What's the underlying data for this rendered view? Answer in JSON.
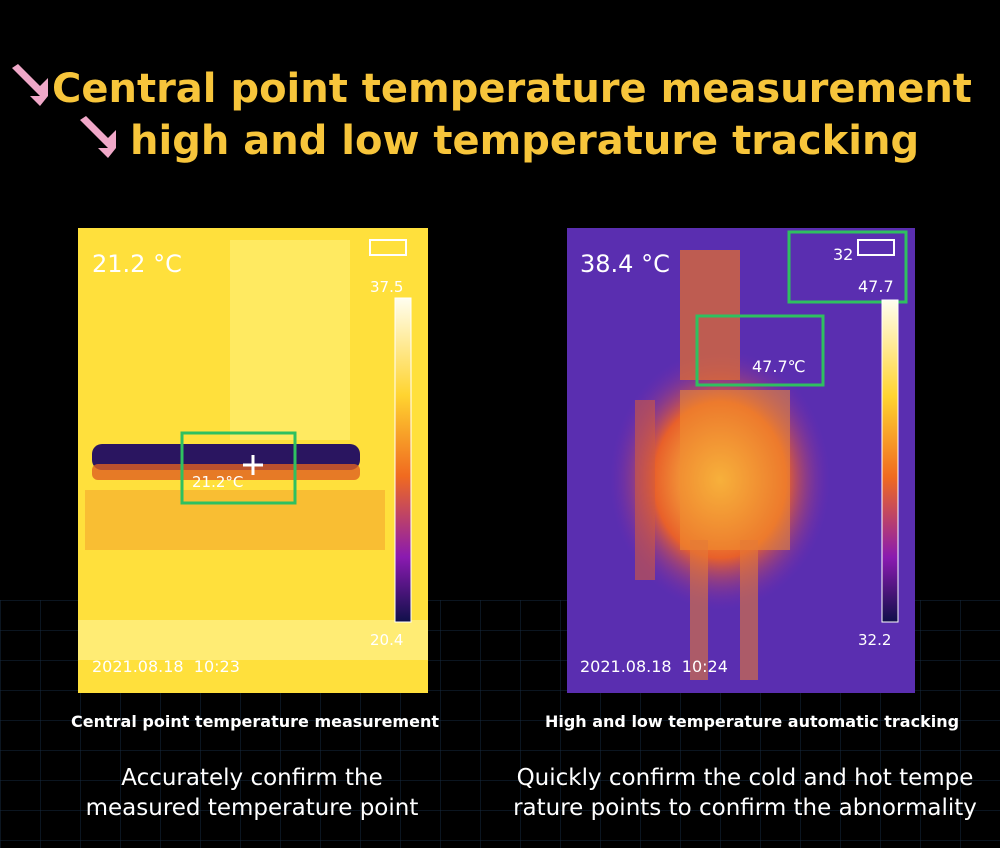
{
  "header": {
    "lines": [
      "Central point temperature measurement",
      "high and low temperature tracking"
    ]
  },
  "panels": [
    {
      "reading": "21.2 °C",
      "scale_max": "37.5",
      "scale_min": "20.4",
      "box_label": "21.2°C",
      "timestamp": "2021.08.18  10:23",
      "caption": "Central point temperature measurement",
      "description": [
        "Accurately confirm the",
        "measured temperature point"
      ]
    },
    {
      "reading": "38.4 °C",
      "corner_top": "32",
      "corner_value": "47.7",
      "scale_min": "32.2",
      "box_label": "47.7℃",
      "timestamp": "2021.08.18  10:24",
      "caption": "High and low temperature automatic tracking",
      "description": [
        "Quickly confirm the cold and hot tempe",
        "rature points to confirm the abnormality"
      ]
    }
  ]
}
